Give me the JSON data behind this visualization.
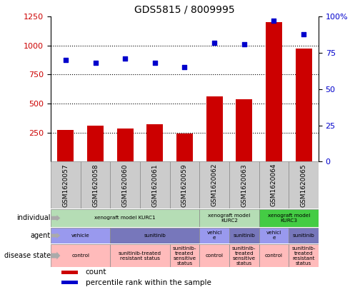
{
  "title": "GDS5815 / 8009995",
  "samples": [
    "GSM1620057",
    "GSM1620058",
    "GSM1620060",
    "GSM1620061",
    "GSM1620059",
    "GSM1620062",
    "GSM1620063",
    "GSM1620064",
    "GSM1620065"
  ],
  "counts": [
    270,
    310,
    285,
    320,
    240,
    565,
    540,
    1200,
    975
  ],
  "percentiles": [
    70,
    68,
    71,
    68,
    65,
    82,
    81,
    97,
    88
  ],
  "ylim_left": [
    0,
    1250
  ],
  "ylim_right": [
    0,
    100
  ],
  "yticks_left": [
    250,
    500,
    750,
    1000,
    1250
  ],
  "yticks_right": [
    0,
    25,
    50,
    75,
    100
  ],
  "bar_color": "#cc0000",
  "dot_color": "#0000cc",
  "individual_row": {
    "spans": [
      {
        "start": 0,
        "end": 5,
        "label": "xenograft model KURC1",
        "color": "#b5ddb5"
      },
      {
        "start": 5,
        "end": 7,
        "label": "xenograft model\nKURC2",
        "color": "#b5ddb5"
      },
      {
        "start": 7,
        "end": 9,
        "label": "xenograft model\nKURC3",
        "color": "#44cc44"
      }
    ]
  },
  "agent_row": {
    "spans": [
      {
        "start": 0,
        "end": 2,
        "label": "vehicle",
        "color": "#9999ee"
      },
      {
        "start": 2,
        "end": 5,
        "label": "sunitinib",
        "color": "#7777bb"
      },
      {
        "start": 5,
        "end": 6,
        "label": "vehicl\ne",
        "color": "#9999ee"
      },
      {
        "start": 6,
        "end": 7,
        "label": "sunitinib",
        "color": "#7777bb"
      },
      {
        "start": 7,
        "end": 8,
        "label": "vehicl\ne",
        "color": "#9999ee"
      },
      {
        "start": 8,
        "end": 9,
        "label": "sunitinib",
        "color": "#7777bb"
      }
    ]
  },
  "disease_row": {
    "spans": [
      {
        "start": 0,
        "end": 2,
        "label": "control",
        "color": "#ffbbbb"
      },
      {
        "start": 2,
        "end": 4,
        "label": "sunitinib-treated\nresistant status",
        "color": "#ffbbbb"
      },
      {
        "start": 4,
        "end": 5,
        "label": "sunitinib-\ntreated\nsensitive\nstatus",
        "color": "#ffbbbb"
      },
      {
        "start": 5,
        "end": 6,
        "label": "control",
        "color": "#ffbbbb"
      },
      {
        "start": 6,
        "end": 7,
        "label": "sunitinib-\ntreated\nsensitive\nstatus",
        "color": "#ffbbbb"
      },
      {
        "start": 7,
        "end": 8,
        "label": "control",
        "color": "#ffbbbb"
      },
      {
        "start": 8,
        "end": 9,
        "label": "sunitinib-\ntreated\nresistant\nstatus",
        "color": "#ffbbbb"
      }
    ]
  },
  "legend_items": [
    {
      "color": "#cc0000",
      "label": "count"
    },
    {
      "color": "#0000cc",
      "label": "percentile rank within the sample"
    }
  ],
  "row_labels": [
    "individual",
    "agent",
    "disease state"
  ],
  "sample_box_color": "#cccccc",
  "sample_box_edge": "#888888"
}
